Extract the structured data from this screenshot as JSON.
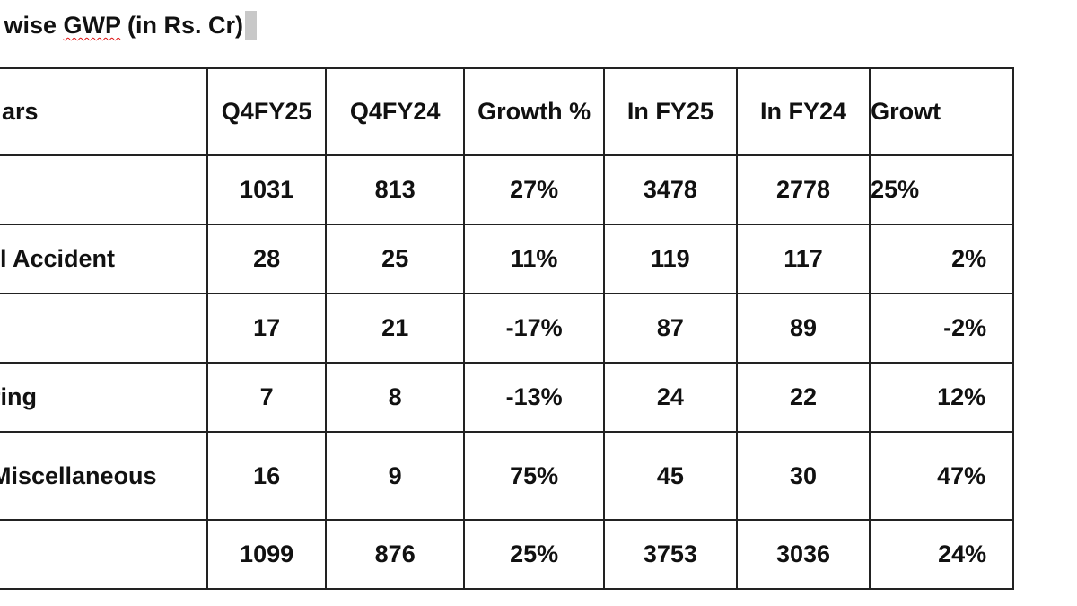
{
  "title": {
    "prefix": "t wise ",
    "spell": "GWP",
    "suffix": " (in Rs. Cr)"
  },
  "table": {
    "headers": [
      "ars",
      "Q4FY25",
      "Q4FY24",
      "Growth %",
      "In FY25",
      "In FY24",
      "Growt"
    ],
    "rows": [
      [
        "",
        "1031",
        "813",
        "27%",
        "3478",
        "2778",
        "25%"
      ],
      [
        "l Accident",
        "28",
        "25",
        "11%",
        "119",
        "117",
        "2%"
      ],
      [
        "",
        "17",
        "21",
        "-17%",
        "87",
        "89",
        "-2%"
      ],
      [
        "ring",
        "7",
        "8",
        "-13%",
        "24",
        "22",
        "12%"
      ],
      [
        "Miscellaneous",
        "16",
        "9",
        "75%",
        "45",
        "30",
        "47%"
      ],
      [
        "",
        "1099",
        "876",
        "25%",
        "3753",
        "3036",
        "24%"
      ]
    ]
  }
}
